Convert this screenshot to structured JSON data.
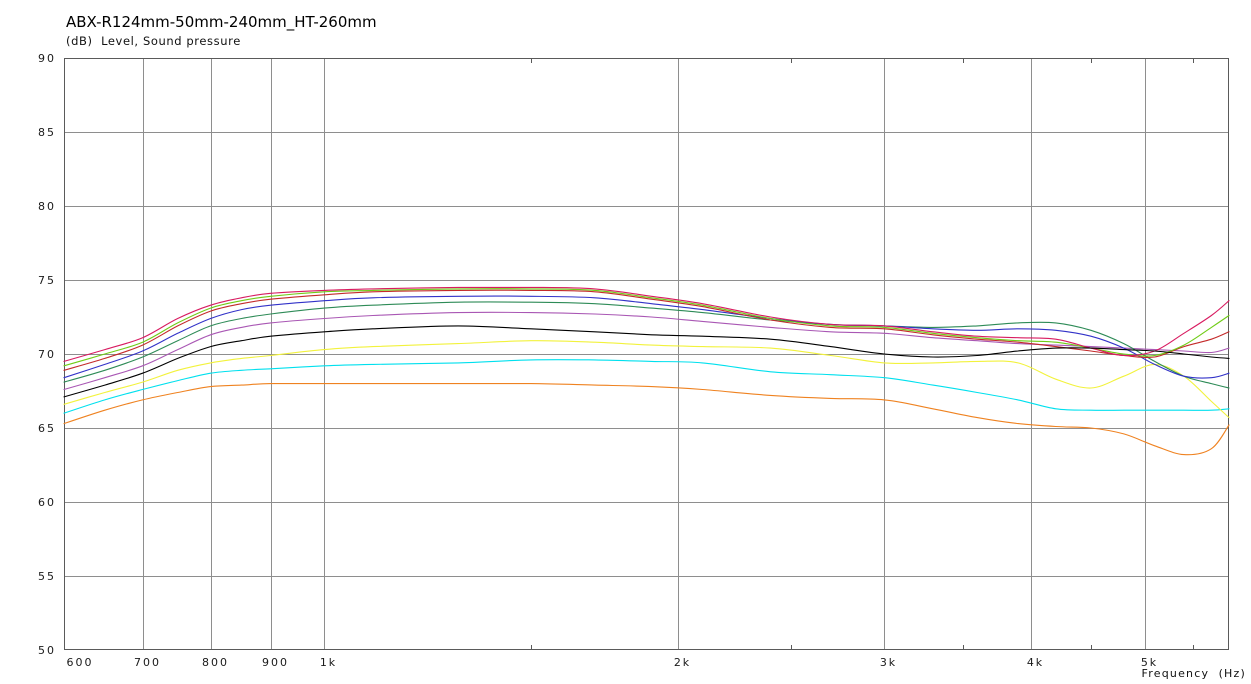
{
  "page": {
    "background": "#ffffff"
  },
  "chart_data": {
    "type": "line",
    "title": "ABX-R124mm-50mm-240mm_HT-260mm",
    "subtitle": "(dB)  Level, Sound pressure",
    "xlabel": "Frequency  (Hz)",
    "x_scale": "log",
    "x_range": [
      600,
      5900
    ],
    "y_range": [
      50,
      90
    ],
    "grid": true,
    "legend_position": "none",
    "colors": {
      "grid": "#8e8e8e",
      "axis_border": "#5a5a5a",
      "minor_tick": "#5a5a5a",
      "tick_text": "#1a1a1a"
    },
    "y_ticks": [
      50,
      55,
      60,
      65,
      70,
      75,
      80,
      85,
      90
    ],
    "x_ticks": [
      {
        "f": 600,
        "label": "600"
      },
      {
        "f": 700,
        "label": "700"
      },
      {
        "f": 800,
        "label": "800"
      },
      {
        "f": 900,
        "label": "900"
      },
      {
        "f": 1000,
        "label": "1k"
      },
      {
        "f": 2000,
        "label": "2k"
      },
      {
        "f": 3000,
        "label": "3k"
      },
      {
        "f": 4000,
        "label": "4k"
      },
      {
        "f": 5000,
        "label": "5k"
      }
    ],
    "x_minor_ticks": [
      1500,
      2500,
      3500,
      4500,
      5500
    ],
    "x": [
      600,
      650,
      700,
      750,
      800,
      850,
      900,
      1000,
      1100,
      1300,
      1500,
      1700,
      1900,
      2100,
      2400,
      2700,
      3000,
      3300,
      3600,
      3900,
      4200,
      4500,
      4800,
      5100,
      5400,
      5700,
      5900
    ],
    "series": [
      {
        "name": "magenta",
        "color": "#D81B60",
        "y": [
          69.5,
          70.3,
          71.1,
          72.4,
          73.3,
          73.8,
          74.1,
          74.3,
          74.4,
          74.5,
          74.5,
          74.4,
          73.9,
          73.4,
          72.5,
          72.0,
          71.9,
          71.5,
          71.2,
          71.1,
          71.0,
          70.4,
          69.9,
          70.2,
          71.4,
          72.6,
          73.6
        ]
      },
      {
        "name": "light-green",
        "color": "#6FCC16",
        "y": [
          69.2,
          70.0,
          70.8,
          72.1,
          73.1,
          73.6,
          73.9,
          74.2,
          74.3,
          74.4,
          74.4,
          74.3,
          73.8,
          73.3,
          72.4,
          71.9,
          71.8,
          71.4,
          71.1,
          70.9,
          70.8,
          70.4,
          70.0,
          69.9,
          70.6,
          71.8,
          72.6
        ]
      },
      {
        "name": "red",
        "color": "#C42A2A",
        "y": [
          68.9,
          69.7,
          70.6,
          71.9,
          72.9,
          73.4,
          73.7,
          74.0,
          74.2,
          74.3,
          74.3,
          74.2,
          73.7,
          73.2,
          72.3,
          71.8,
          71.7,
          71.3,
          71.0,
          70.8,
          70.5,
          70.2,
          69.9,
          69.8,
          70.5,
          71.0,
          71.5
        ]
      },
      {
        "name": "blue",
        "color": "#3232C8",
        "y": [
          68.4,
          69.3,
          70.2,
          71.4,
          72.4,
          73.0,
          73.3,
          73.6,
          73.8,
          73.9,
          73.9,
          73.8,
          73.4,
          73.0,
          72.4,
          72.0,
          71.9,
          71.7,
          71.6,
          71.7,
          71.6,
          71.2,
          70.4,
          69.3,
          68.5,
          68.4,
          68.7
        ]
      },
      {
        "name": "dark-green",
        "color": "#2E8B57",
        "y": [
          68.1,
          68.9,
          69.8,
          70.9,
          71.9,
          72.4,
          72.7,
          73.1,
          73.3,
          73.5,
          73.5,
          73.4,
          73.1,
          72.8,
          72.3,
          72.0,
          71.9,
          71.8,
          71.9,
          72.1,
          72.1,
          71.6,
          70.7,
          69.5,
          68.5,
          68.0,
          67.7
        ]
      },
      {
        "name": "purple",
        "color": "#A957B4",
        "y": [
          67.6,
          68.4,
          69.2,
          70.3,
          71.3,
          71.8,
          72.1,
          72.4,
          72.6,
          72.8,
          72.8,
          72.7,
          72.5,
          72.2,
          71.8,
          71.5,
          71.4,
          71.1,
          70.9,
          70.7,
          70.6,
          70.5,
          70.4,
          70.3,
          70.2,
          70.1,
          70.4
        ]
      },
      {
        "name": "black",
        "color": "#000000",
        "y": [
          67.1,
          67.9,
          68.7,
          69.7,
          70.5,
          70.9,
          71.2,
          71.5,
          71.7,
          71.9,
          71.7,
          71.5,
          71.3,
          71.2,
          71.0,
          70.5,
          70.0,
          69.8,
          69.9,
          70.2,
          70.4,
          70.4,
          70.3,
          70.2,
          70.0,
          69.8,
          69.7
        ]
      },
      {
        "name": "yellow",
        "color": "#F2F23C",
        "y": [
          66.6,
          67.4,
          68.1,
          68.9,
          69.4,
          69.7,
          69.9,
          70.3,
          70.5,
          70.7,
          70.9,
          70.8,
          70.6,
          70.5,
          70.4,
          69.9,
          69.4,
          69.4,
          69.5,
          69.4,
          68.3,
          67.7,
          68.5,
          69.3,
          68.5,
          66.8,
          65.7
        ]
      },
      {
        "name": "cyan",
        "color": "#00E0EE",
        "y": [
          66.0,
          66.9,
          67.6,
          68.2,
          68.7,
          68.9,
          69.0,
          69.2,
          69.3,
          69.4,
          69.6,
          69.6,
          69.5,
          69.4,
          68.8,
          68.6,
          68.4,
          67.9,
          67.4,
          66.9,
          66.3,
          66.2,
          66.2,
          66.2,
          66.2,
          66.2,
          66.3
        ]
      },
      {
        "name": "orange",
        "color": "#EF8220",
        "y": [
          65.3,
          66.2,
          66.9,
          67.4,
          67.8,
          67.9,
          68.0,
          68.0,
          68.0,
          68.0,
          68.0,
          67.9,
          67.8,
          67.6,
          67.2,
          67.0,
          66.9,
          66.3,
          65.7,
          65.3,
          65.1,
          65.0,
          64.6,
          63.8,
          63.2,
          63.6,
          65.2
        ]
      }
    ]
  }
}
